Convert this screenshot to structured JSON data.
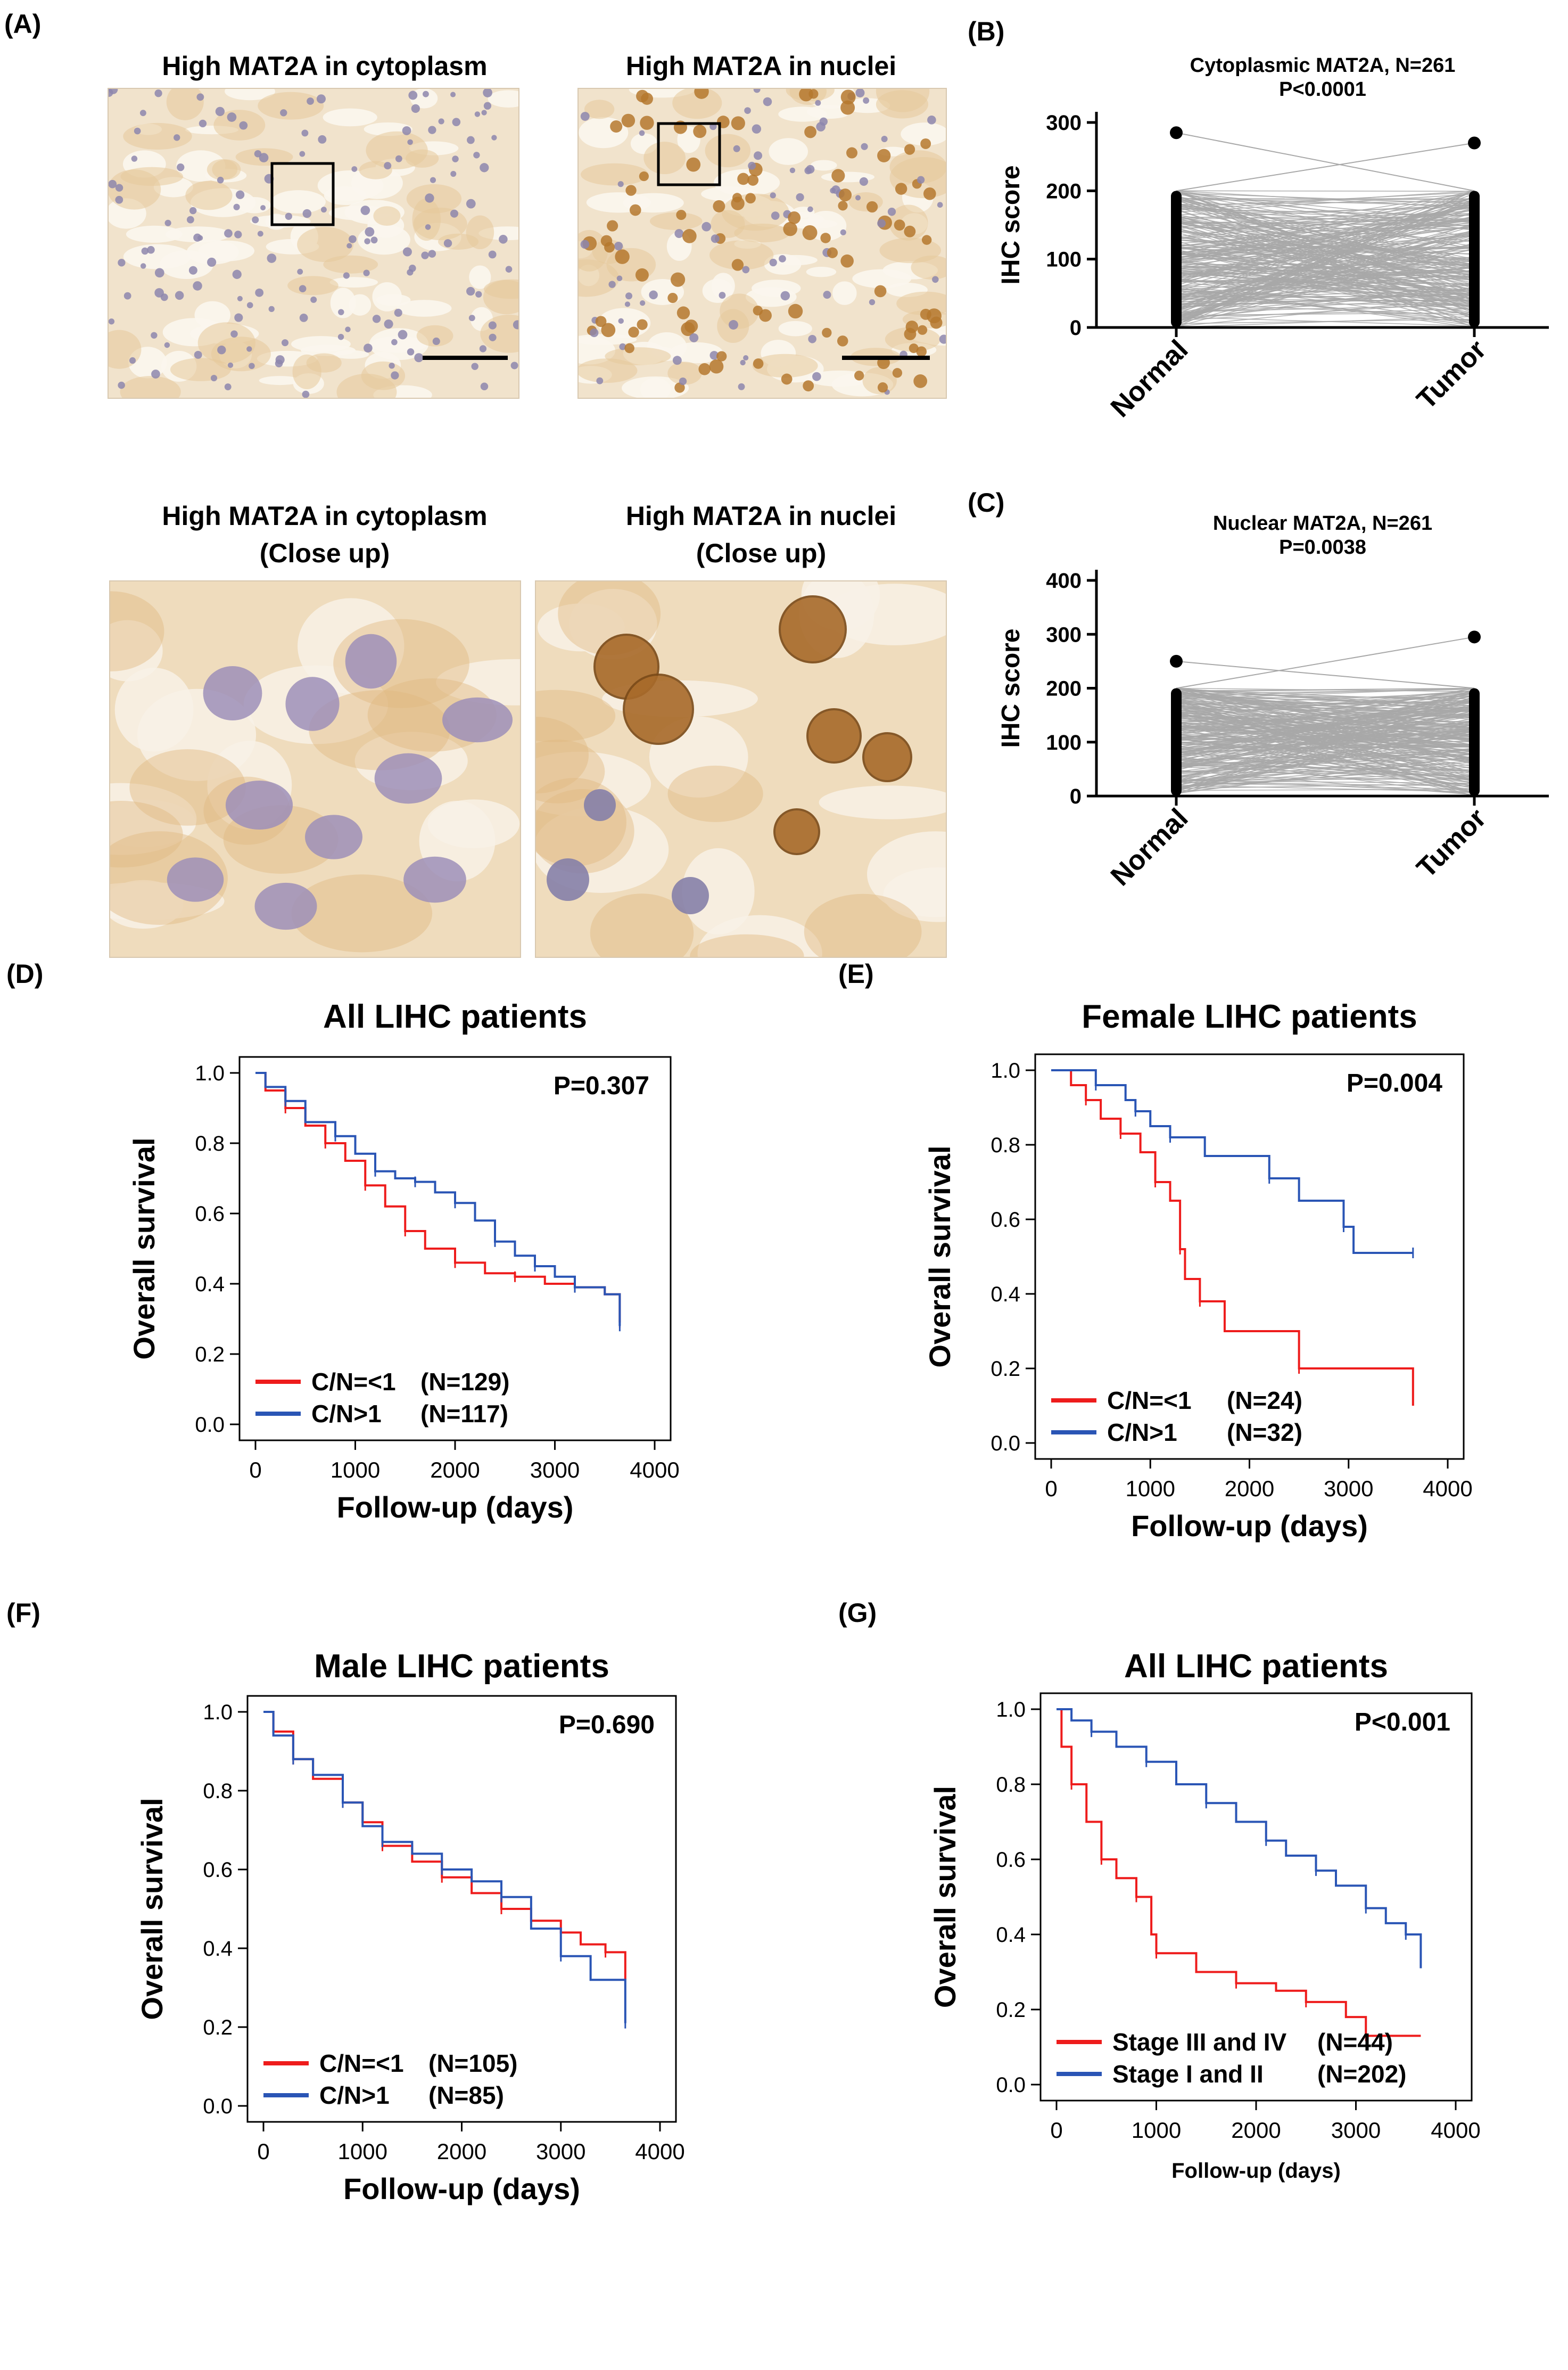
{
  "panel_labels": {
    "A": "(A)",
    "B": "(B)",
    "C": "(C)",
    "D": "(D)",
    "E": "(E)",
    "F": "(F)",
    "G": "(G)"
  },
  "micrographs": {
    "top_left_title": "High MAT2A in cytoplasm",
    "top_right_title": "High MAT2A in nuclei",
    "bottom_left_title_1": "High MAT2A in cytoplasm",
    "bottom_left_title_2": "(Close up)",
    "bottom_right_title_1": "High MAT2A in nuclei",
    "bottom_right_title_2": "(Close up)"
  },
  "colors": {
    "red": "#ee1c1c",
    "blue": "#2a55b5",
    "green": "#22aa44",
    "gray": "#a8a8a8",
    "stain_bg": "#f1e3cc",
    "nucleus_blue": "#8d86ad",
    "nucleus_brown": "#b5782e"
  },
  "chart_data": [
    {
      "id": "B",
      "type": "scatter",
      "title": "Cytoplasmic MAT2A, N=261",
      "subtitle": "P<0.0001",
      "ylabel": "IHC score",
      "categories": [
        "Normal",
        "Tumor"
      ],
      "ylim": [
        0,
        300
      ],
      "yticks": [
        0,
        100,
        200,
        300
      ],
      "normal_max": 285,
      "tumor_max": 270,
      "pairs": 261
    },
    {
      "id": "C",
      "type": "scatter",
      "title": "Nuclear MAT2A, N=261",
      "subtitle": "P=0.0038",
      "ylabel": "IHC score",
      "categories": [
        "Normal",
        "Tumor"
      ],
      "ylim": [
        0,
        400
      ],
      "yticks": [
        0,
        100,
        200,
        300,
        400
      ],
      "normal_max": 250,
      "tumor_max": 295,
      "pairs": 261
    },
    {
      "id": "D",
      "type": "line",
      "title": "All LIHC patients",
      "pvalue": "P=0.307",
      "xlabel": "Follow-up (days)",
      "ylabel": "Overall survival",
      "xlim": [
        0,
        4000
      ],
      "ylim": [
        0,
        1
      ],
      "xticks": [
        0,
        1000,
        2000,
        3000,
        4000
      ],
      "yticks": [
        "0.0",
        "0.2",
        "0.4",
        "0.6",
        "0.8",
        "1.0"
      ],
      "series": [
        {
          "name": "C/N=<1",
          "n": "(N=129)",
          "color": "red",
          "points": [
            [
              0,
              1
            ],
            [
              100,
              0.95
            ],
            [
              300,
              0.9
            ],
            [
              500,
              0.85
            ],
            [
              700,
              0.8
            ],
            [
              900,
              0.75
            ],
            [
              1100,
              0.68
            ],
            [
              1300,
              0.62
            ],
            [
              1500,
              0.55
            ],
            [
              1700,
              0.5
            ],
            [
              2000,
              0.46
            ],
            [
              2300,
              0.43
            ],
            [
              2600,
              0.42
            ],
            [
              2900,
              0.4
            ],
            [
              3200,
              0.39
            ],
            [
              3500,
              0.37
            ],
            [
              3650,
              0.29
            ]
          ]
        },
        {
          "name": "C/N>1",
          "n": "(N=117)",
          "color": "blue",
          "points": [
            [
              0,
              1
            ],
            [
              100,
              0.96
            ],
            [
              300,
              0.92
            ],
            [
              500,
              0.86
            ],
            [
              800,
              0.82
            ],
            [
              1000,
              0.77
            ],
            [
              1200,
              0.72
            ],
            [
              1400,
              0.7
            ],
            [
              1600,
              0.69
            ],
            [
              1800,
              0.66
            ],
            [
              2000,
              0.63
            ],
            [
              2200,
              0.58
            ],
            [
              2400,
              0.52
            ],
            [
              2600,
              0.48
            ],
            [
              2800,
              0.45
            ],
            [
              3000,
              0.42
            ],
            [
              3200,
              0.39
            ],
            [
              3500,
              0.37
            ],
            [
              3650,
              0.28
            ]
          ]
        }
      ]
    },
    {
      "id": "E",
      "type": "line",
      "title": "Female LIHC patients",
      "pvalue": "P=0.004",
      "xlabel": "Follow-up (days)",
      "ylabel": "Overall survival",
      "xlim": [
        0,
        4000
      ],
      "ylim": [
        0,
        1
      ],
      "xticks": [
        0,
        1000,
        2000,
        3000,
        4000
      ],
      "yticks": [
        "0.0",
        "0.2",
        "0.4",
        "0.6",
        "0.8",
        "1.0"
      ],
      "series": [
        {
          "name": "C/N=<1",
          "n": "(N=24)",
          "color": "red",
          "points": [
            [
              0,
              1
            ],
            [
              200,
              0.96
            ],
            [
              350,
              0.92
            ],
            [
              500,
              0.87
            ],
            [
              700,
              0.83
            ],
            [
              900,
              0.78
            ],
            [
              1050,
              0.7
            ],
            [
              1200,
              0.65
            ],
            [
              1300,
              0.52
            ],
            [
              1350,
              0.44
            ],
            [
              1500,
              0.38
            ],
            [
              1750,
              0.3
            ],
            [
              2500,
              0.2
            ],
            [
              3650,
              0.1
            ]
          ]
        },
        {
          "name": "C/N>1",
          "n": "(N=32)",
          "color": "blue",
          "points": [
            [
              0,
              1
            ],
            [
              300,
              1
            ],
            [
              450,
              0.96
            ],
            [
              750,
              0.92
            ],
            [
              850,
              0.89
            ],
            [
              1000,
              0.85
            ],
            [
              1200,
              0.82
            ],
            [
              1550,
              0.77
            ],
            [
              2200,
              0.71
            ],
            [
              2500,
              0.65
            ],
            [
              2950,
              0.58
            ],
            [
              3050,
              0.51
            ],
            [
              3650,
              0.51
            ]
          ]
        }
      ]
    },
    {
      "id": "F",
      "type": "line",
      "title": "Male LIHC patients",
      "pvalue": "P=0.690",
      "xlabel": "Follow-up (days)",
      "ylabel": "Overall survival",
      "xlim": [
        0,
        4000
      ],
      "ylim": [
        0,
        1
      ],
      "xticks": [
        0,
        1000,
        2000,
        3000,
        4000
      ],
      "yticks": [
        "0.0",
        "0.2",
        "0.4",
        "0.6",
        "0.8",
        "1.0"
      ],
      "series": [
        {
          "name": "C/N=<1",
          "n": "(N=105)",
          "color": "red",
          "points": [
            [
              0,
              1
            ],
            [
              100,
              0.95
            ],
            [
              300,
              0.88
            ],
            [
              500,
              0.83
            ],
            [
              800,
              0.77
            ],
            [
              1000,
              0.72
            ],
            [
              1200,
              0.66
            ],
            [
              1500,
              0.62
            ],
            [
              1800,
              0.58
            ],
            [
              2100,
              0.54
            ],
            [
              2400,
              0.5
            ],
            [
              2700,
              0.47
            ],
            [
              3000,
              0.44
            ],
            [
              3200,
              0.41
            ],
            [
              3450,
              0.39
            ],
            [
              3650,
              0.32
            ]
          ]
        },
        {
          "name": "C/N>1",
          "n": "(N=85)",
          "color": "blue",
          "points": [
            [
              0,
              1
            ],
            [
              100,
              0.94
            ],
            [
              300,
              0.88
            ],
            [
              500,
              0.84
            ],
            [
              800,
              0.77
            ],
            [
              1000,
              0.71
            ],
            [
              1200,
              0.67
            ],
            [
              1500,
              0.64
            ],
            [
              1800,
              0.6
            ],
            [
              2100,
              0.57
            ],
            [
              2400,
              0.53
            ],
            [
              2700,
              0.45
            ],
            [
              3000,
              0.38
            ],
            [
              3300,
              0.32
            ],
            [
              3650,
              0.21
            ]
          ]
        }
      ]
    },
    {
      "id": "G",
      "type": "line",
      "title": "All LIHC patients",
      "pvalue": "P<0.001",
      "xlabel": "Follow-up (days)",
      "ylabel": "Overall survival",
      "xlim": [
        0,
        4000
      ],
      "ylim": [
        0,
        1
      ],
      "xticks": [
        0,
        1000,
        2000,
        3000,
        4000
      ],
      "yticks": [
        "0.0",
        "0.2",
        "0.4",
        "0.6",
        "0.8",
        "1.0"
      ],
      "series": [
        {
          "name": "Stage III and IV",
          "n": "(N=44)",
          "color": "red",
          "points": [
            [
              0,
              1
            ],
            [
              50,
              0.9
            ],
            [
              150,
              0.8
            ],
            [
              300,
              0.7
            ],
            [
              450,
              0.6
            ],
            [
              600,
              0.55
            ],
            [
              800,
              0.5
            ],
            [
              950,
              0.4
            ],
            [
              1000,
              0.35
            ],
            [
              1400,
              0.3
            ],
            [
              1800,
              0.27
            ],
            [
              2200,
              0.25
            ],
            [
              2500,
              0.22
            ],
            [
              2900,
              0.18
            ],
            [
              3100,
              0.13
            ],
            [
              3650,
              0.13
            ]
          ]
        },
        {
          "name": "Stage I and II",
          "n": "(N=202)",
          "color": "blue",
          "points": [
            [
              0,
              1
            ],
            [
              150,
              0.97
            ],
            [
              350,
              0.94
            ],
            [
              600,
              0.9
            ],
            [
              900,
              0.86
            ],
            [
              1200,
              0.8
            ],
            [
              1500,
              0.75
            ],
            [
              1800,
              0.7
            ],
            [
              2100,
              0.65
            ],
            [
              2300,
              0.61
            ],
            [
              2600,
              0.57
            ],
            [
              2800,
              0.53
            ],
            [
              3100,
              0.47
            ],
            [
              3300,
              0.43
            ],
            [
              3500,
              0.4
            ],
            [
              3650,
              0.31
            ]
          ]
        }
      ]
    }
  ]
}
